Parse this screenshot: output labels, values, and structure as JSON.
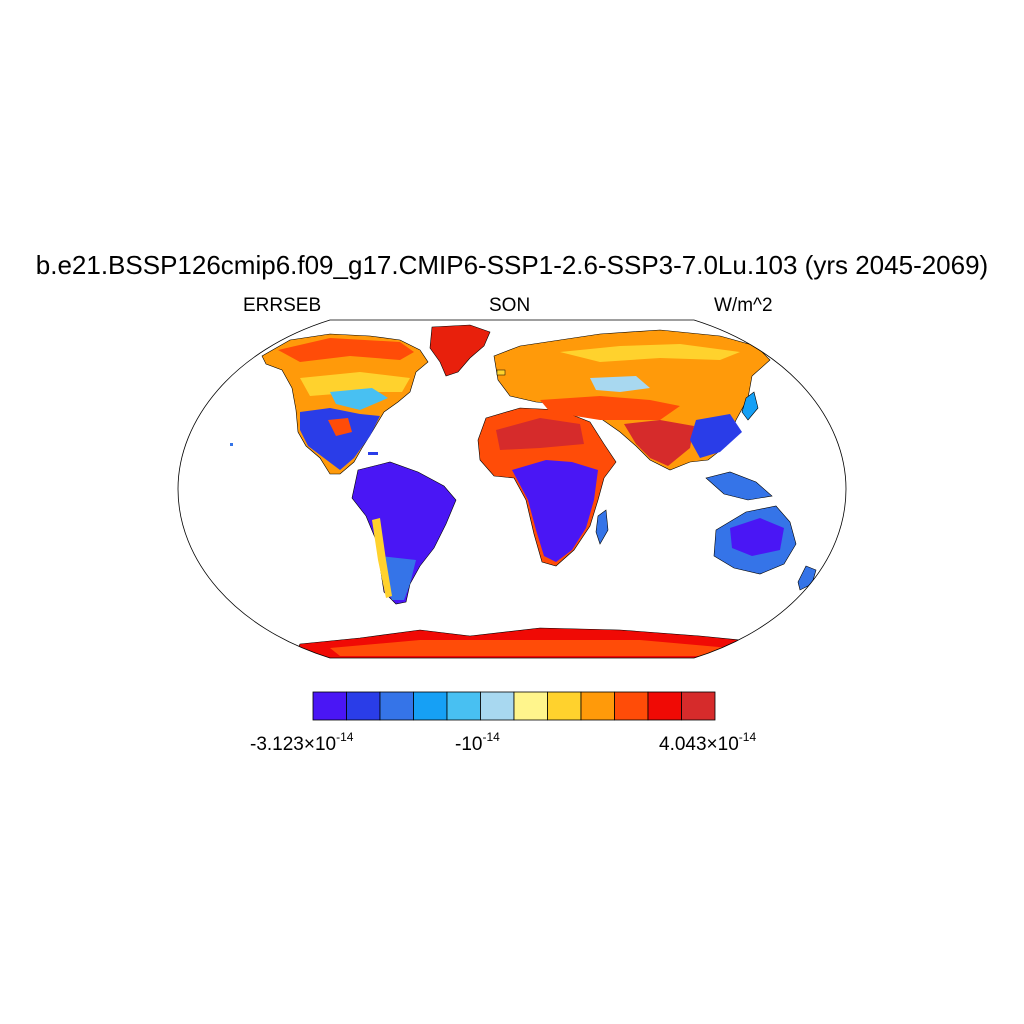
{
  "title": "b.e21.BSSP126cmip6.f09_g17.CMIP6-SSP1-2.6-SSP3-7.0Lu.103 (yrs 2045-2069)",
  "subtitle_left": "ERRSEB",
  "subtitle_center": "SON",
  "subtitle_right": "W/m^2",
  "colorbar": {
    "colors": [
      "#4a16f5",
      "#2a3de8",
      "#3574e8",
      "#16a0f5",
      "#48c0f2",
      "#a8d8f0",
      "#fff58c",
      "#ffd22d",
      "#ff9a0a",
      "#ff4c08",
      "#f00a05",
      "#d62b2b"
    ],
    "labels": [
      {
        "mantissa": "-3.123×10",
        "exponent": "-14"
      },
      {
        "mantissa": "-10",
        "exponent": "-14"
      },
      {
        "mantissa": "4.043×10",
        "exponent": "-14"
      }
    ]
  },
  "map": {
    "projection": "Robinson",
    "ocean_color": "#ffffff",
    "coastline_color": "#000000"
  }
}
